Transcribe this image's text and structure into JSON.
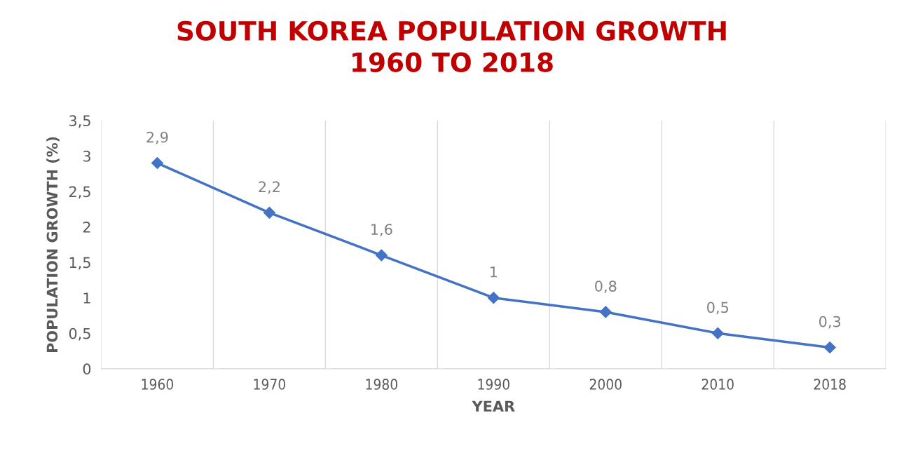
{
  "chart_data": {
    "type": "line",
    "title": "SOUTH KOREA POPULATION GROWTH\n1960 TO 2018",
    "xlabel": "YEAR",
    "ylabel": "POPULATION GROWTH (%)",
    "categories": [
      "1960",
      "1970",
      "1980",
      "1990",
      "2000",
      "2010",
      "2018"
    ],
    "series": [
      {
        "color": "#4472c4",
        "values": [
          2.9,
          2.2,
          1.6,
          1,
          0.8,
          0.5,
          0.3
        ],
        "value_labels": [
          "2,9",
          "2,2",
          "1,6",
          "1",
          "0,8",
          "0,5",
          "0,3"
        ]
      }
    ],
    "ylim": [
      0,
      3.5
    ],
    "yticks": [
      0,
      {
        "value": 0.5,
        "label": "0,5"
      },
      1,
      {
        "value": 1.5,
        "label": "1,5"
      },
      2,
      {
        "value": 2.5,
        "label": "2,5"
      },
      3,
      {
        "value": 3.5,
        "label": "3,5"
      }
    ],
    "grid": "x",
    "marker": "diamond",
    "line_style": "solid",
    "legend": false
  }
}
